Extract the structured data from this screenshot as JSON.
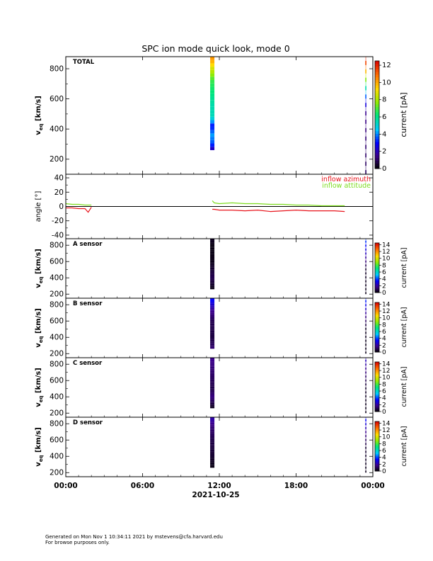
{
  "title": "SPC ion mode quick look, mode 0",
  "xaxis": {
    "ticks": [
      "00:00",
      "06:00",
      "12:00",
      "18:00",
      "00:00"
    ],
    "tick_hours": [
      0,
      6,
      12,
      18,
      24
    ],
    "date_label": "2021-10-25"
  },
  "footer": {
    "line1": "Generated on Mon Nov  1 10:34:11 2021 by mstevens@cfa.harvard.edu",
    "line2": "For browse purposes only."
  },
  "colorbar_label": "current [pA]",
  "spectrogram_ylabel_main": "v",
  "spectrogram_ylabel_sub": "eq",
  "spectrogram_ylabel_unit": "[km/s]",
  "chart_data": [
    {
      "type": "heatmap",
      "panel": "TOTAL",
      "label": "TOTAL",
      "ylim": [
        100,
        880
      ],
      "yticks": [
        200,
        400,
        600,
        800
      ],
      "colorbar": {
        "min": 0,
        "max": 12.5,
        "ticks": [
          0,
          2,
          4,
          6,
          8,
          10,
          12
        ]
      },
      "bands": [
        {
          "hour": 11.45,
          "v_min": 260,
          "v_max": 880,
          "profile": [
            [
              260,
              1.8
            ],
            [
              300,
              3.5
            ],
            [
              360,
              4.2
            ],
            [
              420,
              3.0
            ],
            [
              480,
              5.4
            ],
            [
              560,
              5.6
            ],
            [
              640,
              6.2
            ],
            [
              720,
              6.8
            ],
            [
              800,
              8.6
            ],
            [
              860,
              10.2
            ]
          ]
        },
        {
          "hour": 23.45,
          "v_min": 100,
          "v_max": 880,
          "profile": [
            [
              120,
              1.0
            ],
            [
              300,
              1.2
            ],
            [
              500,
              1.5
            ],
            [
              600,
              3.2
            ],
            [
              700,
              6.5
            ],
            [
              800,
              10.5
            ],
            [
              860,
              12.0
            ]
          ]
        }
      ]
    },
    {
      "type": "line",
      "panel": "angle",
      "ylabel": "angle [°]",
      "ylim": [
        -45,
        45
      ],
      "yticks": [
        -40,
        -20,
        0,
        20,
        40
      ],
      "series": [
        {
          "name": "inflow azimuth",
          "color": "#e8141c",
          "x": [
            0.0,
            0.5,
            1.0,
            1.5,
            1.75,
            2.0,
            11.45,
            11.6,
            12.0,
            13.0,
            14.0,
            15.0,
            16.0,
            17.0,
            18.0,
            19.0,
            20.0,
            21.0,
            21.8
          ],
          "y": [
            -2,
            -2,
            -3,
            -3,
            -8,
            -1,
            -4,
            -4,
            -5,
            -5,
            -6,
            -5,
            -7,
            -6,
            -5,
            -6,
            -6,
            -6,
            -7
          ]
        },
        {
          "name": "inflow attitude",
          "color": "#7ddc1f",
          "x": [
            0.0,
            0.5,
            1.0,
            1.5,
            2.0,
            11.45,
            11.6,
            12.0,
            13.0,
            14.0,
            15.0,
            16.0,
            17.0,
            18.0,
            19.0,
            20.0,
            21.0,
            21.8
          ],
          "y": [
            4,
            3,
            3,
            2,
            2,
            8,
            5,
            4,
            5,
            4,
            4,
            3,
            3,
            2,
            2,
            1,
            1,
            1
          ]
        }
      ]
    },
    {
      "type": "heatmap",
      "panel": "A",
      "label": "A sensor",
      "ylim": [
        150,
        880
      ],
      "yticks": [
        200,
        400,
        600,
        800
      ],
      "colorbar": {
        "min": 0,
        "max": 14.5,
        "ticks": [
          0,
          2,
          4,
          6,
          8,
          10,
          12,
          14
        ]
      },
      "bands": [
        {
          "hour": 11.45,
          "v_min": 260,
          "v_max": 880,
          "profile": [
            [
              260,
              0.2
            ],
            [
              400,
              1.0
            ],
            [
              600,
              0.3
            ],
            [
              800,
              0.2
            ],
            [
              860,
              0.4
            ]
          ]
        },
        {
          "hour": 23.45,
          "v_min": 200,
          "v_max": 880,
          "profile": [
            [
              200,
              0.3
            ],
            [
              500,
              0.5
            ],
            [
              700,
              2.5
            ],
            [
              850,
              4.0
            ]
          ]
        }
      ]
    },
    {
      "type": "heatmap",
      "panel": "B",
      "label": "B sensor",
      "ylim": [
        150,
        880
      ],
      "yticks": [
        200,
        400,
        600,
        800
      ],
      "colorbar": {
        "min": 0,
        "max": 14.5,
        "ticks": [
          0,
          2,
          4,
          6,
          8,
          10,
          12,
          14
        ]
      },
      "bands": [
        {
          "hour": 11.45,
          "v_min": 260,
          "v_max": 880,
          "profile": [
            [
              260,
              1.5
            ],
            [
              300,
              1.2
            ],
            [
              400,
              0.8
            ],
            [
              600,
              1.0
            ],
            [
              750,
              2.0
            ],
            [
              860,
              3.5
            ]
          ]
        },
        {
          "hour": 23.45,
          "v_min": 200,
          "v_max": 880,
          "profile": [
            [
              200,
              0.3
            ],
            [
              500,
              0.4
            ],
            [
              700,
              2.0
            ],
            [
              850,
              3.8
            ]
          ]
        }
      ]
    },
    {
      "type": "heatmap",
      "panel": "C",
      "label": "C sensor",
      "ylim": [
        150,
        880
      ],
      "yticks": [
        200,
        400,
        600,
        800
      ],
      "colorbar": {
        "min": 0,
        "max": 14.5,
        "ticks": [
          0,
          2,
          4,
          6,
          8,
          10,
          12,
          14
        ]
      },
      "bands": [
        {
          "hour": 11.45,
          "v_min": 260,
          "v_max": 880,
          "profile": [
            [
              260,
              0.3
            ],
            [
              400,
              1.6
            ],
            [
              500,
              0.9
            ],
            [
              650,
              1.2
            ],
            [
              800,
              1.6
            ],
            [
              860,
              1.8
            ]
          ]
        },
        {
          "hour": 23.45,
          "v_min": 200,
          "v_max": 880,
          "profile": [
            [
              200,
              0.3
            ],
            [
              500,
              0.5
            ],
            [
              700,
              1.5
            ],
            [
              850,
              2.5
            ]
          ]
        }
      ]
    },
    {
      "type": "heatmap",
      "panel": "D",
      "label": "D sensor",
      "ylim": [
        150,
        880
      ],
      "yticks": [
        200,
        400,
        600,
        800
      ],
      "colorbar": {
        "min": 0,
        "max": 14.5,
        "ticks": [
          0,
          2,
          4,
          6,
          8,
          10,
          12,
          14
        ]
      },
      "bands": [
        {
          "hour": 11.45,
          "v_min": 260,
          "v_max": 880,
          "profile": [
            [
              260,
              0.2
            ],
            [
              400,
              0.6
            ],
            [
              600,
              0.9
            ],
            [
              750,
              1.4
            ],
            [
              860,
              2.2
            ]
          ]
        },
        {
          "hour": 23.45,
          "v_min": 200,
          "v_max": 880,
          "profile": [
            [
              200,
              0.3
            ],
            [
              500,
              0.6
            ],
            [
              700,
              1.8
            ],
            [
              850,
              3.5
            ]
          ]
        }
      ]
    }
  ]
}
